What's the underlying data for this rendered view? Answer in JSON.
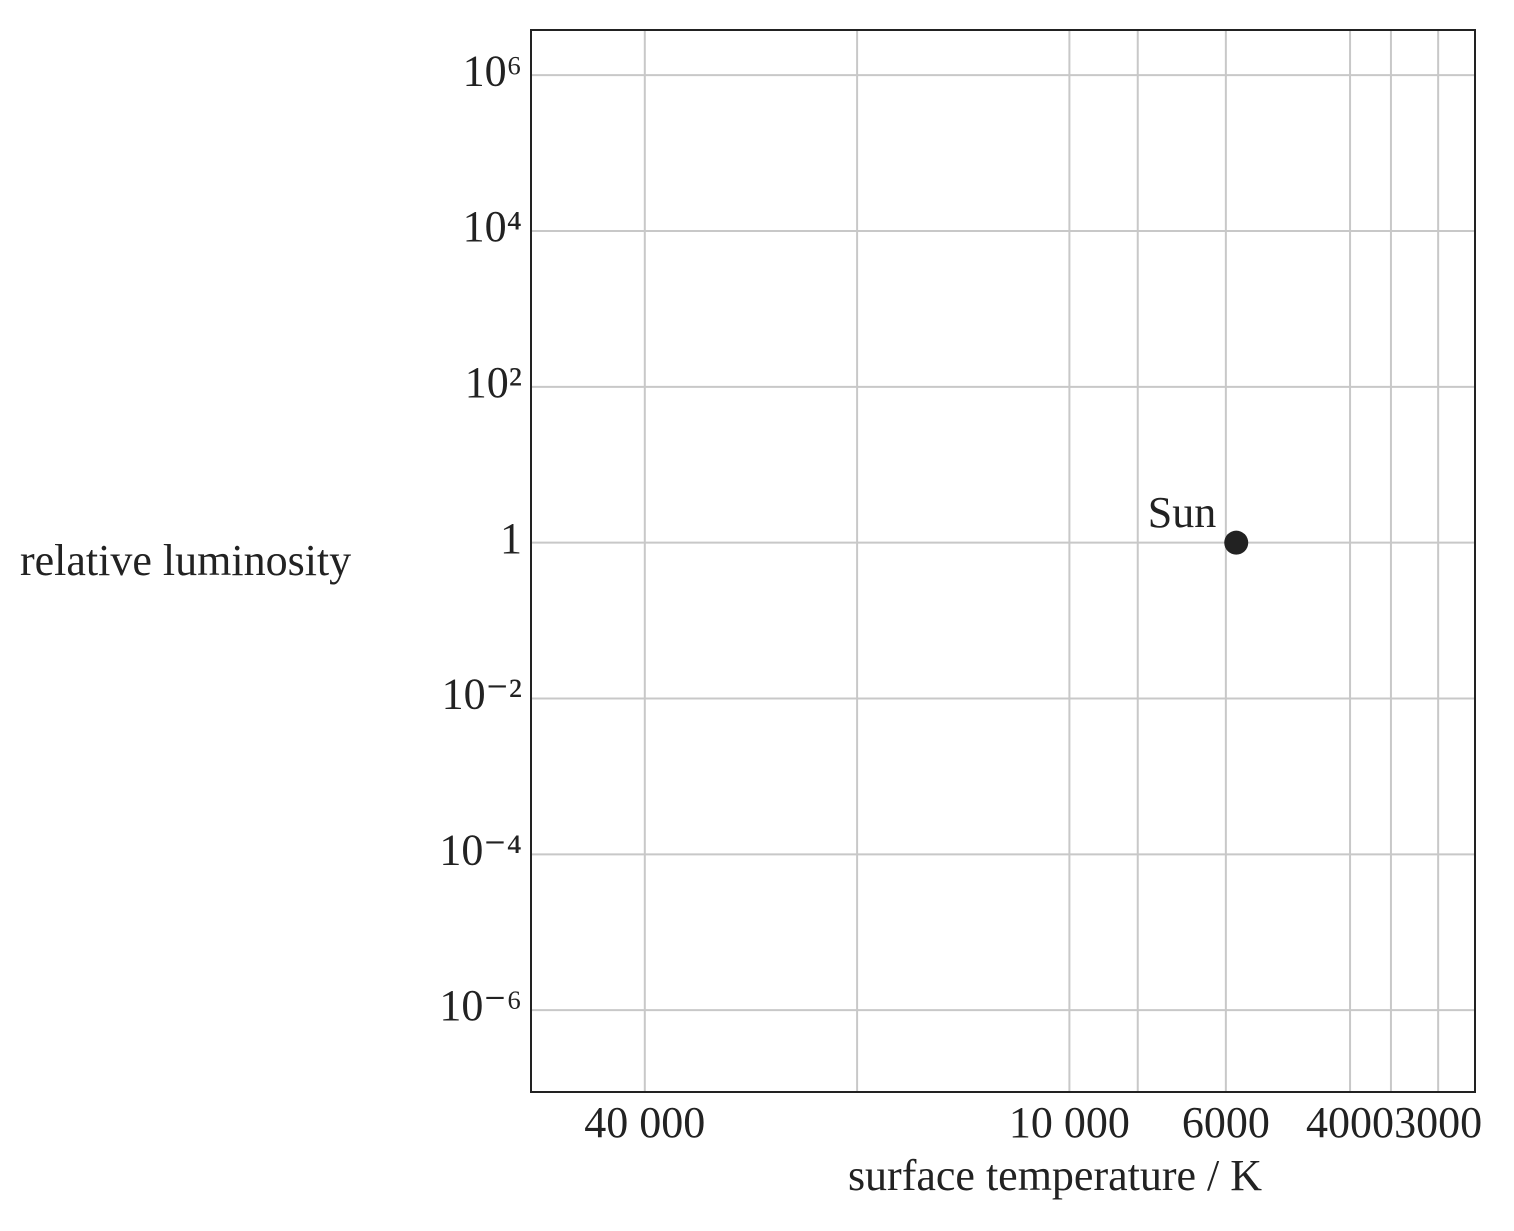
{
  "chart_data": {
    "type": "scatter",
    "xlabel": "surface temperature / K",
    "ylabel": "relative luminosity",
    "xscale": "log",
    "yscale": "log",
    "grid": true,
    "xlim": [
      58000,
      2660
    ],
    "xticks": [
      {
        "value": 40000,
        "label": "40 000"
      },
      {
        "value": 10000,
        "label": "10 000"
      },
      6000,
      4000,
      3000
    ],
    "xminor": [
      20000,
      8000,
      3500
    ],
    "ylim": [
      3800000.0,
      8.9e-08
    ],
    "yticks": [
      {
        "value": 1000000,
        "label": "10⁶"
      },
      {
        "value": 10000,
        "label": "10⁴"
      },
      {
        "value": 100,
        "label": "10²"
      },
      1,
      {
        "value": 0.01,
        "label": "10⁻²"
      },
      {
        "value": 0.0001,
        "label": "10⁻⁴"
      },
      {
        "value": 1e-06,
        "label": "10⁻⁶"
      }
    ],
    "series": [
      {
        "name": "Sun",
        "color": "#222222",
        "x": [
          5800
        ],
        "values": [
          1
        ]
      }
    ]
  }
}
